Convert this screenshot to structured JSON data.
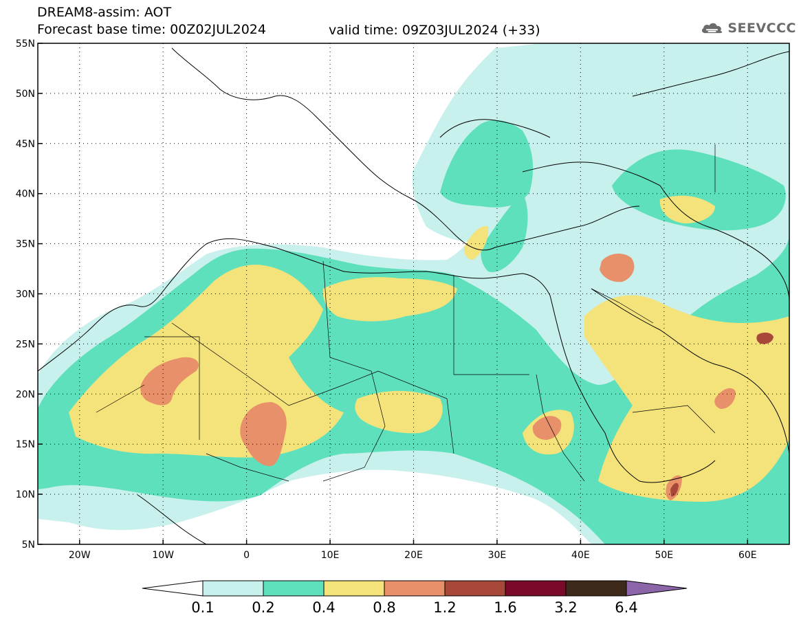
{
  "header": {
    "title_line1": "DREAM8-assim: AOT",
    "title_line2_left": "Forecast base time: 00Z02JUL2024",
    "title_line2_right": "valid time: 09Z03JUL2024 (+33)"
  },
  "logo": {
    "text": "SEEVCCC",
    "icon": "cloud-icon"
  },
  "axes": {
    "lat_labels": [
      "55N",
      "50N",
      "45N",
      "40N",
      "35N",
      "30N",
      "25N",
      "20N",
      "15N",
      "10N",
      "5N"
    ],
    "lon_labels": [
      "20W",
      "10W",
      "0",
      "10E",
      "20E",
      "30E",
      "40E",
      "50E",
      "60E"
    ],
    "lon_range": [
      -25,
      65
    ],
    "lat_range": [
      5,
      55
    ],
    "grid": "dotted"
  },
  "colorbar": {
    "labels": [
      "0.1",
      "0.2",
      "0.4",
      "0.8",
      "1.2",
      "1.6",
      "3.2",
      "6.4"
    ],
    "colors": [
      "#ffffff",
      "#c8f0ec",
      "#5fe0bc",
      "#f4e27a",
      "#e8906a",
      "#a84838",
      "#7a0a2a",
      "#3e2a1a",
      "#8c64a8"
    ]
  },
  "legend_colors": {
    "level_0_1": "#c8f0ec",
    "level_0_2": "#5fe0bc",
    "level_0_4": "#f4e27a",
    "level_0_8": "#e8906a",
    "level_1_2": "#a84838",
    "level_1_6": "#7a0a2a",
    "level_3_2": "#3e2a1a",
    "level_6_4": "#8c64a8"
  }
}
